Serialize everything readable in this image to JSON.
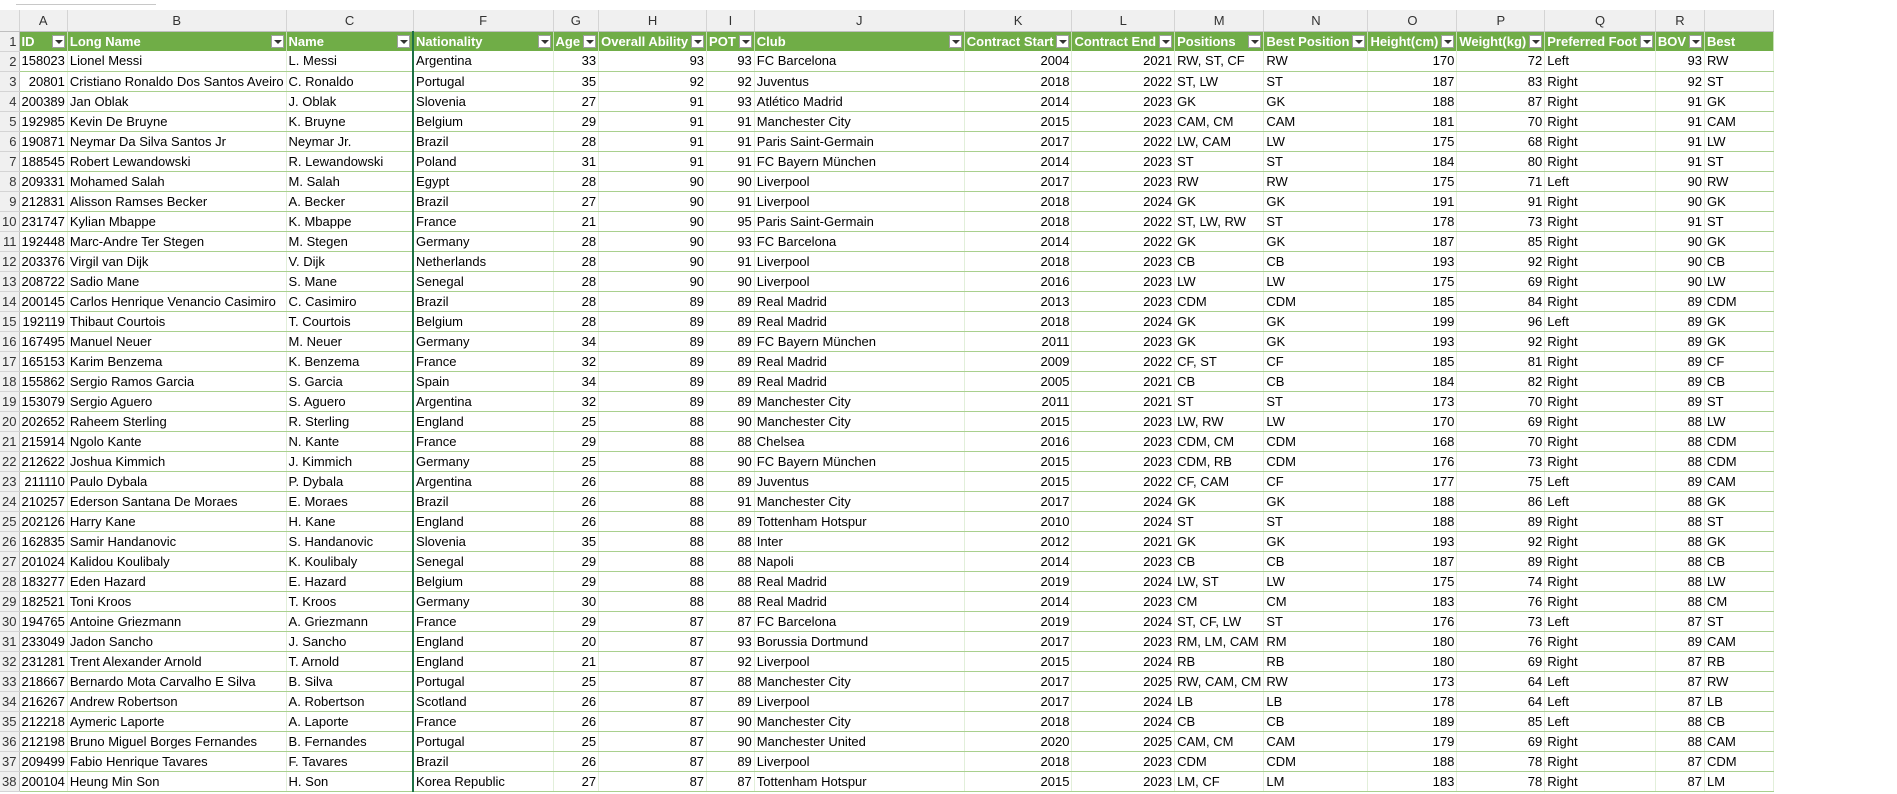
{
  "columns": [
    {
      "letter": "A",
      "header": "ID",
      "type": "num"
    },
    {
      "letter": "B",
      "header": "Long Name",
      "type": "text"
    },
    {
      "letter": "C",
      "header": "Name",
      "type": "text"
    },
    {
      "letter": "F",
      "header": "Nationality",
      "type": "text"
    },
    {
      "letter": "G",
      "header": "Age",
      "type": "num"
    },
    {
      "letter": "H",
      "header": "Overall Ability",
      "type": "num"
    },
    {
      "letter": "I",
      "header": "POT",
      "type": "num"
    },
    {
      "letter": "J",
      "header": "Club",
      "type": "text"
    },
    {
      "letter": "K",
      "header": "Contract Start",
      "type": "num"
    },
    {
      "letter": "L",
      "header": "Contract End",
      "type": "num"
    },
    {
      "letter": "M",
      "header": "Positions",
      "type": "text"
    },
    {
      "letter": "N",
      "header": "Best Position",
      "type": "text"
    },
    {
      "letter": "O",
      "header": "Height(cm)",
      "type": "num"
    },
    {
      "letter": "P",
      "header": "Weight(kg)",
      "type": "num"
    },
    {
      "letter": "Q",
      "header": "Preferred Foot",
      "type": "text"
    },
    {
      "letter": "R",
      "header": "BOV",
      "type": "num"
    },
    {
      "letter": "",
      "header": "Best",
      "type": "text"
    }
  ],
  "rows": [
    [
      "158023",
      "Lionel Messi",
      "L. Messi",
      "Argentina",
      "33",
      "93",
      "93",
      "FC Barcelona",
      "2004",
      "2021",
      "RW, ST, CF",
      "RW",
      "170",
      "72",
      "Left",
      "93",
      "RW"
    ],
    [
      "20801",
      "Cristiano Ronaldo Dos Santos Aveiro",
      "C. Ronaldo",
      "Portugal",
      "35",
      "92",
      "92",
      "Juventus",
      "2018",
      "2022",
      "ST, LW",
      "ST",
      "187",
      "83",
      "Right",
      "92",
      "ST"
    ],
    [
      "200389",
      "Jan Oblak",
      "J. Oblak",
      "Slovenia",
      "27",
      "91",
      "93",
      "Atlético Madrid",
      "2014",
      "2023",
      "GK",
      "GK",
      "188",
      "87",
      "Right",
      "91",
      "GK"
    ],
    [
      "192985",
      "Kevin De Bruyne",
      "K. Bruyne",
      "Belgium",
      "29",
      "91",
      "91",
      "Manchester City",
      "2015",
      "2023",
      "CAM, CM",
      "CAM",
      "181",
      "70",
      "Right",
      "91",
      "CAM"
    ],
    [
      "190871",
      "Neymar Da Silva Santos Jr",
      "Neymar Jr.",
      "Brazil",
      "28",
      "91",
      "91",
      "Paris Saint-Germain",
      "2017",
      "2022",
      "LW, CAM",
      "LW",
      "175",
      "68",
      "Right",
      "91",
      "LW"
    ],
    [
      "188545",
      "Robert Lewandowski",
      "R. Lewandowski",
      "Poland",
      "31",
      "91",
      "91",
      "FC Bayern München",
      "2014",
      "2023",
      "ST",
      "ST",
      "184",
      "80",
      "Right",
      "91",
      "ST"
    ],
    [
      "209331",
      "Mohamed Salah",
      "M. Salah",
      "Egypt",
      "28",
      "90",
      "90",
      "Liverpool",
      "2017",
      "2023",
      "RW",
      "RW",
      "175",
      "71",
      "Left",
      "90",
      "RW"
    ],
    [
      "212831",
      "Alisson Ramses Becker",
      "A. Becker",
      "Brazil",
      "27",
      "90",
      "91",
      "Liverpool",
      "2018",
      "2024",
      "GK",
      "GK",
      "191",
      "91",
      "Right",
      "90",
      "GK"
    ],
    [
      "231747",
      "Kylian Mbappe",
      "K. Mbappe",
      "France",
      "21",
      "90",
      "95",
      "Paris Saint-Germain",
      "2018",
      "2022",
      "ST, LW, RW",
      "ST",
      "178",
      "73",
      "Right",
      "91",
      "ST"
    ],
    [
      "192448",
      "Marc-Andre Ter Stegen",
      "M. Stegen",
      "Germany",
      "28",
      "90",
      "93",
      "FC Barcelona",
      "2014",
      "2022",
      "GK",
      "GK",
      "187",
      "85",
      "Right",
      "90",
      "GK"
    ],
    [
      "203376",
      "Virgil van Dijk",
      "V. Dijk",
      "Netherlands",
      "28",
      "90",
      "91",
      "Liverpool",
      "2018",
      "2023",
      "CB",
      "CB",
      "193",
      "92",
      "Right",
      "90",
      "CB"
    ],
    [
      "208722",
      "Sadio Mane",
      "S. Mane",
      "Senegal",
      "28",
      "90",
      "90",
      "Liverpool",
      "2016",
      "2023",
      "LW",
      "LW",
      "175",
      "69",
      "Right",
      "90",
      "LW"
    ],
    [
      "200145",
      "Carlos Henrique Venancio Casimiro",
      "C. Casimiro",
      "Brazil",
      "28",
      "89",
      "89",
      "Real Madrid",
      "2013",
      "2023",
      "CDM",
      "CDM",
      "185",
      "84",
      "Right",
      "89",
      "CDM"
    ],
    [
      "192119",
      "Thibaut Courtois",
      "T. Courtois",
      "Belgium",
      "28",
      "89",
      "89",
      "Real Madrid",
      "2018",
      "2024",
      "GK",
      "GK",
      "199",
      "96",
      "Left",
      "89",
      "GK"
    ],
    [
      "167495",
      "Manuel Neuer",
      "M. Neuer",
      "Germany",
      "34",
      "89",
      "89",
      "FC Bayern München",
      "2011",
      "2023",
      "GK",
      "GK",
      "193",
      "92",
      "Right",
      "89",
      "GK"
    ],
    [
      "165153",
      "Karim Benzema",
      "K. Benzema",
      "France",
      "32",
      "89",
      "89",
      "Real Madrid",
      "2009",
      "2022",
      "CF, ST",
      "CF",
      "185",
      "81",
      "Right",
      "89",
      "CF"
    ],
    [
      "155862",
      "Sergio Ramos Garcia",
      "S. Garcia",
      "Spain",
      "34",
      "89",
      "89",
      "Real Madrid",
      "2005",
      "2021",
      "CB",
      "CB",
      "184",
      "82",
      "Right",
      "89",
      "CB"
    ],
    [
      "153079",
      "Sergio Aguero",
      "S. Aguero",
      "Argentina",
      "32",
      "89",
      "89",
      "Manchester City",
      "2011",
      "2021",
      "ST",
      "ST",
      "173",
      "70",
      "Right",
      "89",
      "ST"
    ],
    [
      "202652",
      "Raheem Sterling",
      "R. Sterling",
      "England",
      "25",
      "88",
      "90",
      "Manchester City",
      "2015",
      "2023",
      "LW, RW",
      "LW",
      "170",
      "69",
      "Right",
      "88",
      "LW"
    ],
    [
      "215914",
      "Ngolo Kante",
      "N. Kante",
      "France",
      "29",
      "88",
      "88",
      "Chelsea",
      "2016",
      "2023",
      "CDM, CM",
      "CDM",
      "168",
      "70",
      "Right",
      "88",
      "CDM"
    ],
    [
      "212622",
      "Joshua Kimmich",
      "J. Kimmich",
      "Germany",
      "25",
      "88",
      "90",
      "FC Bayern München",
      "2015",
      "2023",
      "CDM, RB",
      "CDM",
      "176",
      "73",
      "Right",
      "88",
      "CDM"
    ],
    [
      "211110",
      "Paulo Dybala",
      "P. Dybala",
      "Argentina",
      "26",
      "88",
      "89",
      "Juventus",
      "2015",
      "2022",
      "CF, CAM",
      "CF",
      "177",
      "75",
      "Left",
      "89",
      "CAM"
    ],
    [
      "210257",
      "Ederson Santana De Moraes",
      "E. Moraes",
      "Brazil",
      "26",
      "88",
      "91",
      "Manchester City",
      "2017",
      "2024",
      "GK",
      "GK",
      "188",
      "86",
      "Left",
      "88",
      "GK"
    ],
    [
      "202126",
      "Harry Kane",
      "H. Kane",
      "England",
      "26",
      "88",
      "89",
      "Tottenham Hotspur",
      "2010",
      "2024",
      "ST",
      "ST",
      "188",
      "89",
      "Right",
      "88",
      "ST"
    ],
    [
      "162835",
      "Samir Handanovic",
      "S. Handanovic",
      "Slovenia",
      "35",
      "88",
      "88",
      "Inter",
      "2012",
      "2021",
      "GK",
      "GK",
      "193",
      "92",
      "Right",
      "88",
      "GK"
    ],
    [
      "201024",
      "Kalidou Koulibaly",
      "K. Koulibaly",
      "Senegal",
      "29",
      "88",
      "88",
      "Napoli",
      "2014",
      "2023",
      "CB",
      "CB",
      "187",
      "89",
      "Right",
      "88",
      "CB"
    ],
    [
      "183277",
      "Eden Hazard",
      "E. Hazard",
      "Belgium",
      "29",
      "88",
      "88",
      "Real Madrid",
      "2019",
      "2024",
      "LW, ST",
      "LW",
      "175",
      "74",
      "Right",
      "88",
      "LW"
    ],
    [
      "182521",
      "Toni Kroos",
      "T. Kroos",
      "Germany",
      "30",
      "88",
      "88",
      "Real Madrid",
      "2014",
      "2023",
      "CM",
      "CM",
      "183",
      "76",
      "Right",
      "88",
      "CM"
    ],
    [
      "194765",
      "Antoine Griezmann",
      "A. Griezmann",
      "France",
      "29",
      "87",
      "87",
      "FC Barcelona",
      "2019",
      "2024",
      "ST, CF, LW",
      "ST",
      "176",
      "73",
      "Left",
      "87",
      "ST"
    ],
    [
      "233049",
      "Jadon Sancho",
      "J. Sancho",
      "England",
      "20",
      "87",
      "93",
      "Borussia Dortmund",
      "2017",
      "2023",
      "RM, LM, CAM",
      "RM",
      "180",
      "76",
      "Right",
      "89",
      "CAM"
    ],
    [
      "231281",
      "Trent Alexander Arnold",
      "T. Arnold",
      "England",
      "21",
      "87",
      "92",
      "Liverpool",
      "2015",
      "2024",
      "RB",
      "RB",
      "180",
      "69",
      "Right",
      "87",
      "RB"
    ],
    [
      "218667",
      "Bernardo Mota Carvalho E Silva",
      "B. Silva",
      "Portugal",
      "25",
      "87",
      "88",
      "Manchester City",
      "2017",
      "2025",
      "RW, CAM, CM",
      "RW",
      "173",
      "64",
      "Left",
      "87",
      "RW"
    ],
    [
      "216267",
      "Andrew Robertson",
      "A. Robertson",
      "Scotland",
      "26",
      "87",
      "89",
      "Liverpool",
      "2017",
      "2024",
      "LB",
      "LB",
      "178",
      "64",
      "Left",
      "87",
      "LB"
    ],
    [
      "212218",
      "Aymeric Laporte",
      "A. Laporte",
      "France",
      "26",
      "87",
      "90",
      "Manchester City",
      "2018",
      "2024",
      "CB",
      "CB",
      "189",
      "85",
      "Left",
      "88",
      "CB"
    ],
    [
      "212198",
      "Bruno Miguel Borges Fernandes",
      "B. Fernandes",
      "Portugal",
      "25",
      "87",
      "90",
      "Manchester United",
      "2020",
      "2025",
      "CAM, CM",
      "CAM",
      "179",
      "69",
      "Right",
      "88",
      "CAM"
    ],
    [
      "209499",
      "Fabio Henrique Tavares",
      "F. Tavares",
      "Brazil",
      "26",
      "87",
      "89",
      "Liverpool",
      "2018",
      "2023",
      "CDM",
      "CDM",
      "188",
      "78",
      "Right",
      "87",
      "CDM"
    ],
    [
      "200104",
      "Heung Min Son",
      "H. Son",
      "Korea Republic",
      "27",
      "87",
      "87",
      "Tottenham Hotspur",
      "2015",
      "2023",
      "LM, CF",
      "LM",
      "183",
      "78",
      "Right",
      "87",
      "LM"
    ]
  ],
  "colors": {
    "header_bg": "#70ad47",
    "header_text": "#ffffff",
    "row_border": "#a9d08e",
    "chrome_bg": "#f0f0f0"
  }
}
